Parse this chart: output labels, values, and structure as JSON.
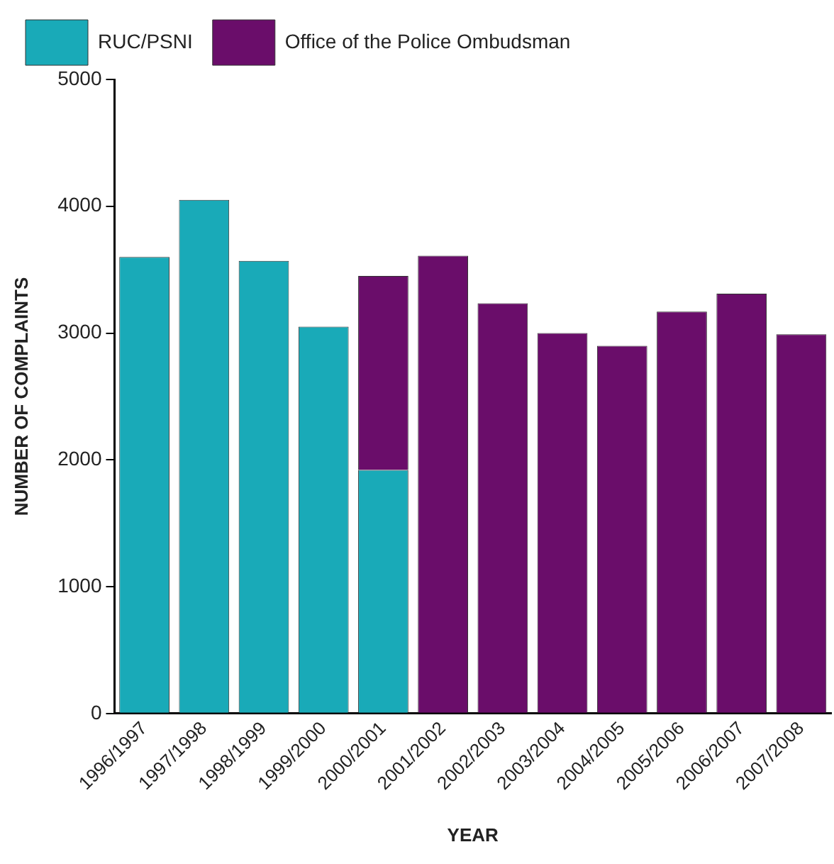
{
  "chart_data": {
    "type": "bar",
    "stacked": true,
    "xlabel": "YEAR",
    "ylabel": "NUMBER OF COMPLAINTS",
    "categories": [
      "1996/1997",
      "1997/1998",
      "1998/1999",
      "1999/2000",
      "2000/2001",
      "2001/2002",
      "2002/2003",
      "2003/2004",
      "2004/2005",
      "2005/2006",
      "2006/2007",
      "2007/2008"
    ],
    "series": [
      {
        "name": "RUC/PSNI",
        "color": "#19aab8",
        "values": [
          3600,
          4050,
          3570,
          3050,
          1920,
          null,
          null,
          null,
          null,
          null,
          null,
          null
        ]
      },
      {
        "name": "Office of the Police Ombudsman",
        "color": "#6a0d6a",
        "values": [
          null,
          null,
          null,
          null,
          1530,
          3610,
          3235,
          3000,
          2900,
          3170,
          3310,
          2990
        ]
      }
    ],
    "ylim": [
      0,
      5000
    ],
    "yticks": [
      0,
      1000,
      2000,
      3000,
      4000,
      5000
    ],
    "grid": false,
    "legend": "top"
  }
}
